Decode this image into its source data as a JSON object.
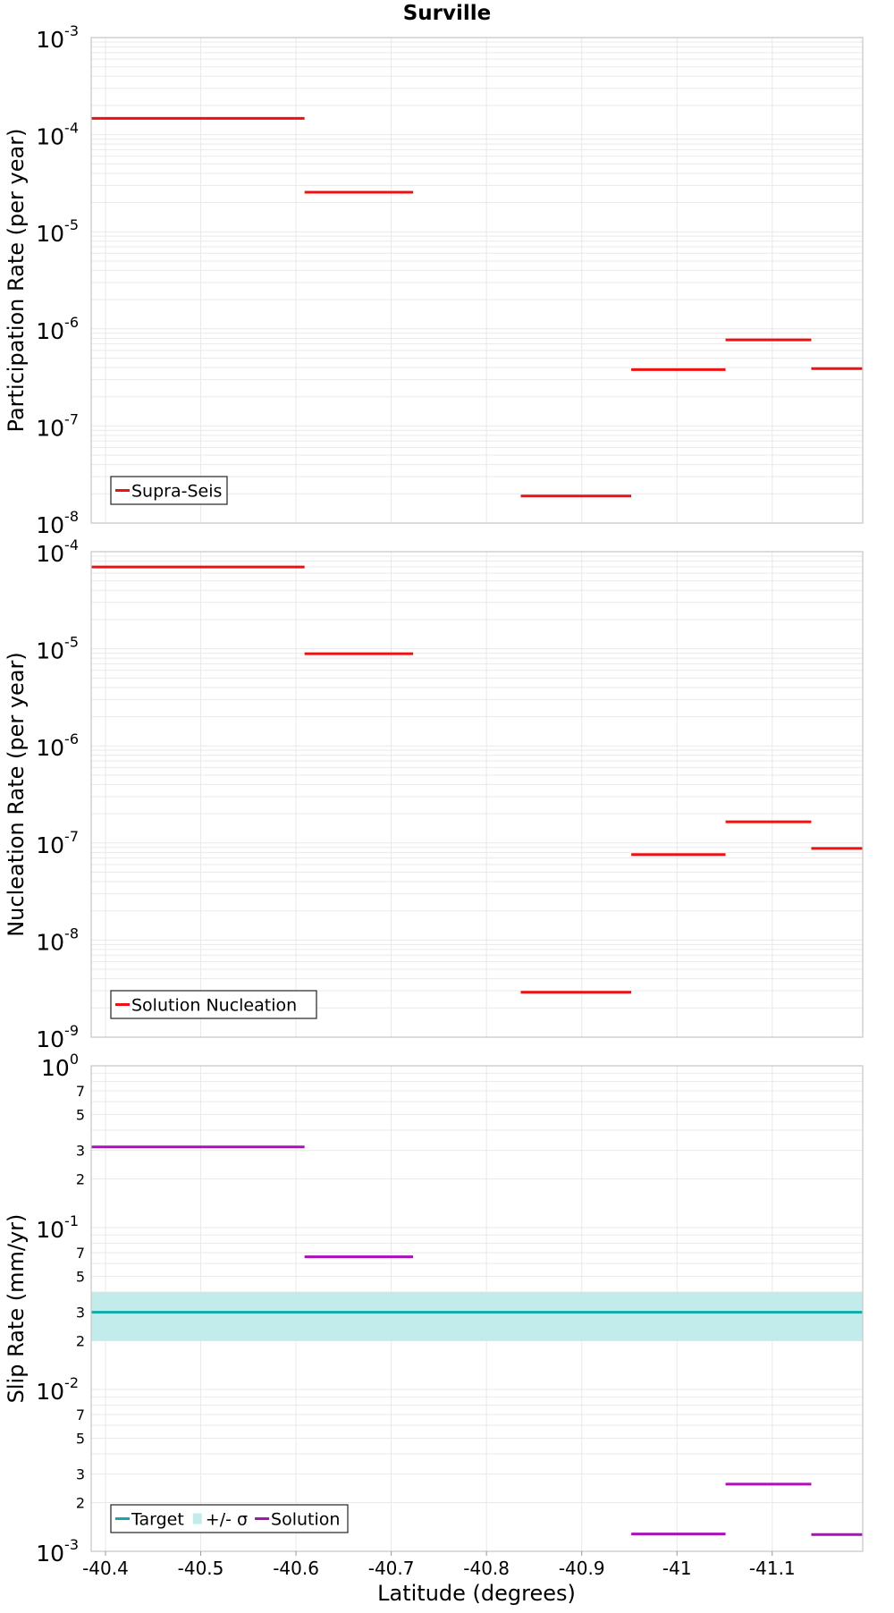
{
  "title": "Surville",
  "xlabel": "Latitude (degrees)",
  "x_ticks": [
    -40.4,
    -40.5,
    -40.6,
    -40.7,
    -40.8,
    -40.9,
    -41,
    -41.1
  ],
  "x_tick_labels": [
    "-40.4",
    "-40.5",
    "-40.6",
    "-40.7",
    "-40.8",
    "-40.9",
    "-41",
    "-41.1"
  ],
  "colors": {
    "red": "#ee1111",
    "teal": "#11aaaa",
    "band": "#c2eceb",
    "purple": "#aa11bb"
  },
  "chart_data": [
    {
      "type": "line",
      "ylabel": "Participation Rate (per year)",
      "xlim": [
        -40.385,
        -41.195
      ],
      "ylim": [
        1e-08,
        0.001
      ],
      "y_scale": "log",
      "y_major_exponents": [
        -3,
        -4,
        -5,
        -6,
        -7,
        -8
      ],
      "series": [
        {
          "name": "Supra-Seis",
          "color": "#ee1111",
          "segments": [
            {
              "x": [
                -40.385,
                -40.609
              ],
              "y": 0.000147
            },
            {
              "x": [
                -40.609,
                -40.723
              ],
              "y": 2.55e-05
            },
            {
              "x": [
                -40.836,
                -40.952
              ],
              "y": 1.9e-08
            },
            {
              "x": [
                -40.952,
                -41.051
              ],
              "y": 3.8e-07
            },
            {
              "x": [
                -41.051,
                -41.141
              ],
              "y": 7.7e-07
            },
            {
              "x": [
                -41.141,
                -41.195
              ],
              "y": 3.9e-07
            }
          ]
        }
      ],
      "legend": [
        "Supra-Seis"
      ],
      "legend_position": "bottom-left"
    },
    {
      "type": "line",
      "ylabel": "Nucleation Rate (per year)",
      "xlim": [
        -40.385,
        -41.195
      ],
      "ylim": [
        1e-09,
        0.0001
      ],
      "y_scale": "log",
      "y_major_exponents": [
        -4,
        -5,
        -6,
        -7,
        -8,
        -9
      ],
      "series": [
        {
          "name": "Solution Nucleation",
          "color": "#ee1111",
          "segments": [
            {
              "x": [
                -40.385,
                -40.609
              ],
              "y": 6.95e-05
            },
            {
              "x": [
                -40.609,
                -40.723
              ],
              "y": 8.9e-06
            },
            {
              "x": [
                -40.836,
                -40.952
              ],
              "y": 2.9e-09
            },
            {
              "x": [
                -40.952,
                -41.051
              ],
              "y": 7.6e-08
            },
            {
              "x": [
                -41.051,
                -41.141
              ],
              "y": 1.65e-07
            },
            {
              "x": [
                -41.141,
                -41.195
              ],
              "y": 8.8e-08
            }
          ]
        }
      ],
      "legend": [
        "Solution Nucleation"
      ],
      "legend_position": "bottom-left"
    },
    {
      "type": "line",
      "ylabel": "Slip Rate (mm/yr)",
      "xlim": [
        -40.385,
        -41.195
      ],
      "ylim": [
        0.001,
        1
      ],
      "y_scale": "log",
      "y_major_exponents": [
        0,
        -1,
        -2,
        -3
      ],
      "y_minor_labels": [
        "7",
        "5",
        "3",
        "2"
      ],
      "band": {
        "name": "+/- σ",
        "y": [
          0.02,
          0.04
        ],
        "color": "#c2eceb"
      },
      "series": [
        {
          "name": "Target",
          "color": "#11aaaa",
          "segments": [
            {
              "x": [
                -40.385,
                -41.195
              ],
              "y": 0.03
            }
          ]
        },
        {
          "name": "Solution",
          "color": "#aa11bb",
          "segments": [
            {
              "x": [
                -40.385,
                -40.609
              ],
              "y": 0.315
            },
            {
              "x": [
                -40.609,
                -40.723
              ],
              "y": 0.066
            },
            {
              "x": [
                -40.952,
                -41.051
              ],
              "y": 0.00128
            },
            {
              "x": [
                -41.051,
                -41.141
              ],
              "y": 0.0026
            },
            {
              "x": [
                -41.141,
                -41.195
              ],
              "y": 0.00127
            }
          ]
        }
      ],
      "legend": [
        "Target",
        "+/- σ",
        "Solution"
      ],
      "legend_position": "bottom-left"
    }
  ]
}
